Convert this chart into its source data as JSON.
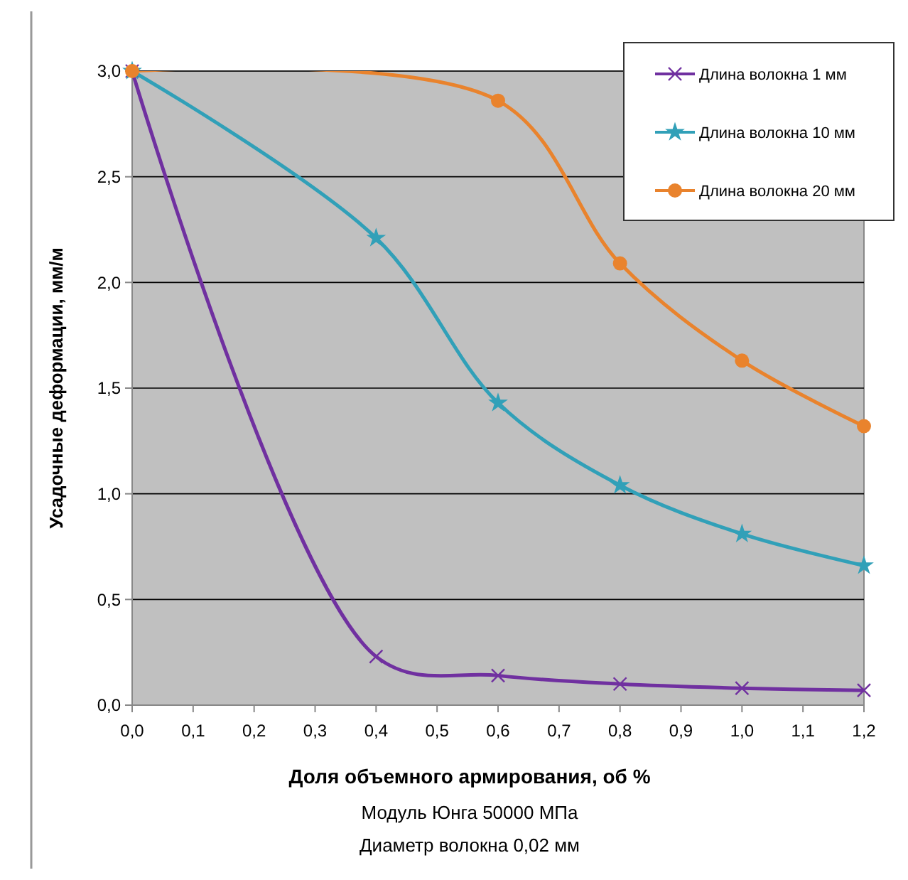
{
  "chart_data": {
    "type": "line",
    "xlabel": "Доля объемного армирования, об %",
    "ylabel": "Усадочные деформации, мм/м",
    "annotations": [
      "Модуль Юнга 50000 МПа",
      "Диаметр волокна 0,02 мм"
    ],
    "x": [
      0,
      0.4,
      0.6,
      0.8,
      1.0,
      1.2
    ],
    "series": [
      {
        "name": "Длина волокна 1 мм",
        "color": "#7030a0",
        "marker": "cross",
        "values": [
          3.0,
          0.23,
          0.14,
          0.1,
          0.08,
          0.07
        ]
      },
      {
        "name": "Длина волокна 10 мм",
        "color": "#31a0b8",
        "marker": "star",
        "values": [
          3.0,
          2.21,
          1.43,
          1.04,
          0.81,
          0.66
        ]
      },
      {
        "name": "Длина волокна 20 мм",
        "color": "#e9832d",
        "marker": "circle",
        "values": [
          3.0,
          null,
          2.86,
          2.09,
          1.63,
          1.32
        ]
      }
    ],
    "xlim": [
      0,
      1.2
    ],
    "xticks": [
      {
        "value": 0,
        "label": "0,0"
      },
      {
        "value": 0.1,
        "label": "0,1"
      },
      {
        "value": 0.2,
        "label": "0,2"
      },
      {
        "value": 0.3,
        "label": "0,3"
      },
      {
        "value": 0.4,
        "label": "0,4"
      },
      {
        "value": 0.5,
        "label": "0,5"
      },
      {
        "value": 0.6,
        "label": "0,6"
      },
      {
        "value": 0.7,
        "label": "0,7"
      },
      {
        "value": 0.8,
        "label": "0,8"
      },
      {
        "value": 0.9,
        "label": "0,9"
      },
      {
        "value": 1.0,
        "label": "1,0"
      },
      {
        "value": 1.1,
        "label": "1,1"
      },
      {
        "value": 1.2,
        "label": "1,2"
      }
    ],
    "ylim": [
      0,
      3
    ],
    "yticks": [
      {
        "value": 0,
        "label": "0,0"
      },
      {
        "value": 0.5,
        "label": "0,5"
      },
      {
        "value": 1.0,
        "label": "1,0"
      },
      {
        "value": 1.5,
        "label": "1,5"
      },
      {
        "value": 2.0,
        "label": "2,0"
      },
      {
        "value": 2.5,
        "label": "2,5"
      },
      {
        "value": 3.0,
        "label": "3,0"
      }
    ],
    "grid": "y",
    "legend": "top right",
    "line_style": "solid"
  }
}
